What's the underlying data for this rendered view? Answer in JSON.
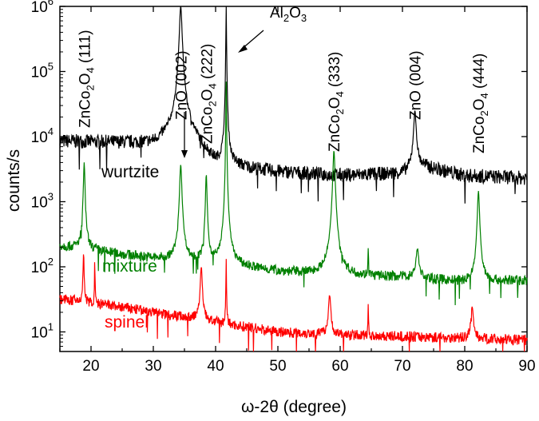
{
  "chart_data": {
    "type": "line",
    "xlabel": "ω-2θ (degree)",
    "ylabel": "counts/s",
    "xlim": [
      15,
      90
    ],
    "ylim": [
      5,
      1000000
    ],
    "yscale": "log",
    "grid": false,
    "x_ticks": [
      20,
      30,
      40,
      50,
      60,
      70,
      80,
      90
    ],
    "x_tick_labels": [
      "20",
      "30",
      "40",
      "50",
      "60",
      "70",
      "80",
      "90"
    ],
    "y_ticks": [
      10,
      100,
      1000,
      10000,
      100000,
      1000000
    ],
    "y_tick_labels": [
      {
        "base": "10",
        "exp": "1"
      },
      {
        "base": "10",
        "exp": "2"
      },
      {
        "base": "10",
        "exp": "3"
      },
      {
        "base": "10",
        "exp": "4"
      },
      {
        "base": "10",
        "exp": "5"
      },
      {
        "base": "10",
        "exp": "6"
      }
    ],
    "series": [
      {
        "name": "wurtzite",
        "color": "#000000",
        "baseline": [
          [
            15,
            8500
          ],
          [
            25,
            8000
          ],
          [
            30,
            7500
          ],
          [
            32.5,
            9000
          ],
          [
            36,
            9000
          ],
          [
            40,
            3500
          ],
          [
            50,
            2800
          ],
          [
            60,
            2500
          ],
          [
            70,
            2700
          ],
          [
            73,
            3500
          ],
          [
            80,
            2500
          ],
          [
            90,
            2300
          ]
        ],
        "peaks": [
          [
            34.4,
            1000000,
            0.35
          ],
          [
            41.7,
            1000000,
            0.08
          ],
          [
            72.0,
            21000,
            0.4
          ]
        ]
      },
      {
        "name": "mixture",
        "color": "#008000",
        "baseline": [
          [
            15,
            210
          ],
          [
            25,
            155
          ],
          [
            30,
            135
          ],
          [
            40,
            110
          ],
          [
            50,
            85
          ],
          [
            60,
            72
          ],
          [
            70,
            70
          ],
          [
            80,
            58
          ],
          [
            90,
            62
          ]
        ],
        "peaks": [
          [
            18.9,
            3800,
            0.22
          ],
          [
            34.4,
            3600,
            0.3
          ],
          [
            38.5,
            2500,
            0.22
          ],
          [
            41.7,
            70000,
            0.08
          ],
          [
            59.0,
            6000,
            0.3
          ],
          [
            64.5,
            160,
            0.08
          ],
          [
            72.4,
            115,
            0.5
          ],
          [
            82.2,
            1400,
            0.3
          ]
        ]
      },
      {
        "name": "spinel",
        "color": "#ff0000",
        "baseline": [
          [
            15,
            32
          ],
          [
            25,
            24
          ],
          [
            30,
            20
          ],
          [
            37,
            16
          ],
          [
            40,
            14
          ],
          [
            50,
            10
          ],
          [
            60,
            9
          ],
          [
            70,
            8.5
          ],
          [
            80,
            8
          ],
          [
            90,
            7.5
          ]
        ],
        "peaks": [
          [
            18.8,
            135,
            0.15
          ],
          [
            20.6,
            130,
            0.06
          ],
          [
            37.7,
            85,
            0.3
          ],
          [
            41.7,
            120,
            0.08
          ],
          [
            58.3,
            28,
            0.35
          ],
          [
            64.5,
            18,
            0.08
          ],
          [
            81.2,
            16,
            0.4
          ]
        ]
      }
    ],
    "annotations": [
      {
        "text": "ZnCo",
        "sub1": "2",
        "mid": "O",
        "sub2": "4",
        "tail": " (111)",
        "x": 18.9
      },
      {
        "text": "ZnO (002)",
        "x": 34.4
      },
      {
        "text": "ZnCo",
        "sub1": "2",
        "mid": "O",
        "sub2": "4",
        "tail": " (222)",
        "x": 38.5
      },
      {
        "text": "ZnCo",
        "sub1": "2",
        "mid": "O",
        "sub2": "4",
        "tail": " (333)",
        "x": 59.0
      },
      {
        "text": "ZnO (004)",
        "x": 72.0
      },
      {
        "text": "ZnCo",
        "sub1": "2",
        "mid": "O",
        "sub2": "4",
        "tail": " (444)",
        "x": 82.2
      }
    ],
    "al2o3_label": {
      "a": "Al",
      "s1": "2",
      "b": "O",
      "s2": "3"
    },
    "series_labels": [
      "wurtzite",
      "mixture",
      "spinel"
    ]
  }
}
